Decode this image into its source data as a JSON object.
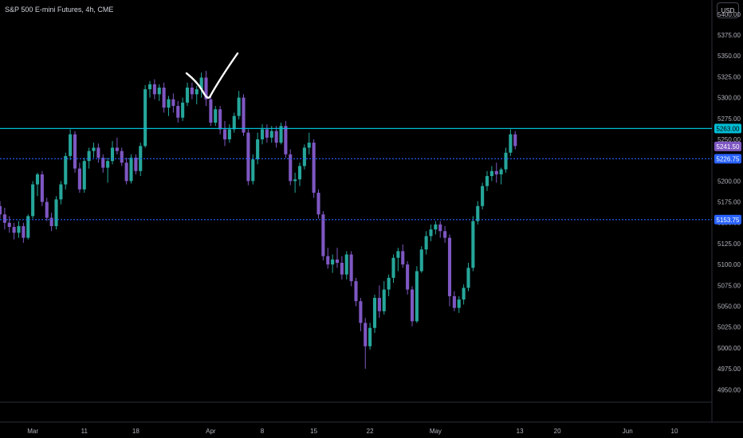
{
  "header": {
    "symbol_title": "S&P 500 E-mini Futures, 4h, CME",
    "currency_button": "USD"
  },
  "colors": {
    "background": "#000000",
    "up": "#26a69a",
    "down": "#7e57c2",
    "resistance_line": "#00bcd4",
    "dotted_line": "#2962ff",
    "price_label": "#7e57c2"
  },
  "chart_data": {
    "type": "candlestick",
    "title": "S&P 500 E-mini Futures, 4h, CME",
    "y_axis": {
      "ylim": [
        4935,
        5417
      ],
      "ticks": [
        5400,
        5375,
        5350,
        5325,
        5300,
        5275,
        5250,
        5225,
        5200,
        5175,
        5150,
        5125,
        5100,
        5075,
        5050,
        5025,
        5000,
        4975,
        4950
      ],
      "tick_labels": [
        "5400.00",
        "5375.00",
        "5350.00",
        "5325.00",
        "5300.00",
        "5275.00",
        "5250.00",
        "5225.00",
        "5200.00",
        "5175.00",
        "5150.00",
        "5125.00",
        "5100.00",
        "5075.00",
        "5050.00",
        "5025.00",
        "5000.00",
        "4975.00",
        "4950.00"
      ],
      "position": "right"
    },
    "x_axis": {
      "tick_labels": [
        "Mar",
        "11",
        "18",
        "Apr",
        "8",
        "15",
        "22",
        "May",
        "13",
        "20",
        "Jun",
        "10"
      ],
      "tick_bar_index": [
        8,
        19,
        30,
        46,
        57,
        68,
        80,
        94,
        112,
        120,
        135,
        145
      ],
      "total_slots": 152
    },
    "horizontal_lines": [
      {
        "price": 5263,
        "style": "solid",
        "color": "#00bcd4",
        "label": "5263.00"
      },
      {
        "price": 5226.75,
        "style": "dotted",
        "color": "#2962ff",
        "label": "5226.75"
      },
      {
        "price": 5153.75,
        "style": "dotted",
        "color": "#2962ff",
        "label": "5153.75"
      }
    ],
    "current_price": {
      "price": 5241.5,
      "label": "5241.50",
      "color": "#7e57c2"
    },
    "annotation": "hand-drawn checkmark near the March highs",
    "ohlc": [
      [
        5180,
        5184,
        5164,
        5170
      ],
      [
        5170,
        5176,
        5155,
        5160
      ],
      [
        5160,
        5168,
        5142,
        5150
      ],
      [
        5150,
        5158,
        5138,
        5145
      ],
      [
        5145,
        5150,
        5130,
        5138
      ],
      [
        5138,
        5152,
        5132,
        5146
      ],
      [
        5146,
        5150,
        5126,
        5132
      ],
      [
        5132,
        5160,
        5130,
        5158
      ],
      [
        5158,
        5200,
        5155,
        5196
      ],
      [
        5196,
        5210,
        5182,
        5208
      ],
      [
        5208,
        5212,
        5170,
        5175
      ],
      [
        5175,
        5180,
        5152,
        5156
      ],
      [
        5156,
        5162,
        5140,
        5146
      ],
      [
        5146,
        5182,
        5142,
        5178
      ],
      [
        5178,
        5200,
        5172,
        5196
      ],
      [
        5196,
        5234,
        5190,
        5230
      ],
      [
        5230,
        5262,
        5225,
        5256
      ],
      [
        5256,
        5260,
        5210,
        5215
      ],
      [
        5215,
        5222,
        5186,
        5190
      ],
      [
        5190,
        5228,
        5186,
        5224
      ],
      [
        5224,
        5240,
        5215,
        5236
      ],
      [
        5236,
        5246,
        5228,
        5240
      ],
      [
        5240,
        5245,
        5222,
        5228
      ],
      [
        5228,
        5232,
        5210,
        5216
      ],
      [
        5216,
        5228,
        5198,
        5224
      ],
      [
        5224,
        5248,
        5220,
        5240
      ],
      [
        5240,
        5252,
        5232,
        5236
      ],
      [
        5236,
        5240,
        5218,
        5222
      ],
      [
        5222,
        5228,
        5196,
        5200
      ],
      [
        5200,
        5232,
        5197,
        5228
      ],
      [
        5228,
        5232,
        5208,
        5212
      ],
      [
        5212,
        5246,
        5206,
        5242
      ],
      [
        5242,
        5315,
        5240,
        5310
      ],
      [
        5310,
        5320,
        5300,
        5316
      ],
      [
        5316,
        5322,
        5298,
        5304
      ],
      [
        5304,
        5316,
        5296,
        5312
      ],
      [
        5312,
        5318,
        5282,
        5288
      ],
      [
        5288,
        5302,
        5278,
        5298
      ],
      [
        5298,
        5305,
        5282,
        5290
      ],
      [
        5290,
        5296,
        5270,
        5276
      ],
      [
        5276,
        5300,
        5272,
        5294
      ],
      [
        5294,
        5318,
        5290,
        5312
      ],
      [
        5312,
        5318,
        5298,
        5304
      ],
      [
        5304,
        5314,
        5292,
        5310
      ],
      [
        5310,
        5330,
        5300,
        5324
      ],
      [
        5324,
        5332,
        5290,
        5298
      ],
      [
        5298,
        5302,
        5266,
        5270
      ],
      [
        5270,
        5290,
        5266,
        5286
      ],
      [
        5286,
        5290,
        5256,
        5262
      ],
      [
        5262,
        5272,
        5242,
        5250
      ],
      [
        5250,
        5268,
        5246,
        5262
      ],
      [
        5262,
        5282,
        5258,
        5278
      ],
      [
        5278,
        5308,
        5274,
        5300
      ],
      [
        5300,
        5304,
        5254,
        5258
      ],
      [
        5258,
        5262,
        5195,
        5200
      ],
      [
        5200,
        5232,
        5196,
        5226
      ],
      [
        5226,
        5258,
        5220,
        5250
      ],
      [
        5250,
        5268,
        5244,
        5262
      ],
      [
        5262,
        5268,
        5246,
        5252
      ],
      [
        5252,
        5266,
        5246,
        5260
      ],
      [
        5260,
        5266,
        5240,
        5246
      ],
      [
        5246,
        5270,
        5244,
        5266
      ],
      [
        5266,
        5272,
        5228,
        5232
      ],
      [
        5232,
        5238,
        5195,
        5200
      ],
      [
        5200,
        5210,
        5186,
        5202
      ],
      [
        5202,
        5222,
        5194,
        5218
      ],
      [
        5218,
        5244,
        5214,
        5240
      ],
      [
        5240,
        5258,
        5232,
        5246
      ],
      [
        5246,
        5250,
        5180,
        5186
      ],
      [
        5186,
        5190,
        5155,
        5160
      ],
      [
        5160,
        5164,
        5105,
        5110
      ],
      [
        5110,
        5120,
        5095,
        5100
      ],
      [
        5100,
        5112,
        5090,
        5106
      ],
      [
        5106,
        5120,
        5096,
        5102
      ],
      [
        5102,
        5110,
        5082,
        5088
      ],
      [
        5088,
        5116,
        5082,
        5112
      ],
      [
        5112,
        5116,
        5074,
        5080
      ],
      [
        5080,
        5084,
        5050,
        5056
      ],
      [
        5056,
        5060,
        5020,
        5030
      ],
      [
        5030,
        5036,
        4975,
        5002
      ],
      [
        5002,
        5030,
        4998,
        5024
      ],
      [
        5024,
        5064,
        5018,
        5060
      ],
      [
        5060,
        5075,
        5036,
        5044
      ],
      [
        5044,
        5080,
        5040,
        5070
      ],
      [
        5070,
        5088,
        5062,
        5084
      ],
      [
        5084,
        5112,
        5078,
        5108
      ],
      [
        5108,
        5120,
        5092,
        5116
      ],
      [
        5116,
        5124,
        5096,
        5100
      ],
      [
        5100,
        5104,
        5064,
        5070
      ],
      [
        5070,
        5074,
        5026,
        5032
      ],
      [
        5032,
        5098,
        5030,
        5092
      ],
      [
        5092,
        5122,
        5090,
        5118
      ],
      [
        5118,
        5140,
        5112,
        5134
      ],
      [
        5134,
        5148,
        5128,
        5142
      ],
      [
        5142,
        5152,
        5136,
        5148
      ],
      [
        5148,
        5152,
        5132,
        5140
      ],
      [
        5140,
        5146,
        5126,
        5132
      ],
      [
        5132,
        5136,
        5050,
        5062
      ],
      [
        5062,
        5068,
        5044,
        5048
      ],
      [
        5048,
        5062,
        5042,
        5058
      ],
      [
        5058,
        5076,
        5052,
        5072
      ],
      [
        5072,
        5102,
        5068,
        5096
      ],
      [
        5096,
        5158,
        5092,
        5152
      ],
      [
        5152,
        5176,
        5148,
        5170
      ],
      [
        5170,
        5198,
        5166,
        5194
      ],
      [
        5194,
        5212,
        5188,
        5206
      ],
      [
        5206,
        5218,
        5200,
        5212
      ],
      [
        5212,
        5222,
        5198,
        5208
      ],
      [
        5208,
        5216,
        5196,
        5214
      ],
      [
        5214,
        5240,
        5210,
        5234
      ],
      [
        5234,
        5262,
        5230,
        5256
      ],
      [
        5256,
        5260,
        5238,
        5242
      ]
    ]
  }
}
